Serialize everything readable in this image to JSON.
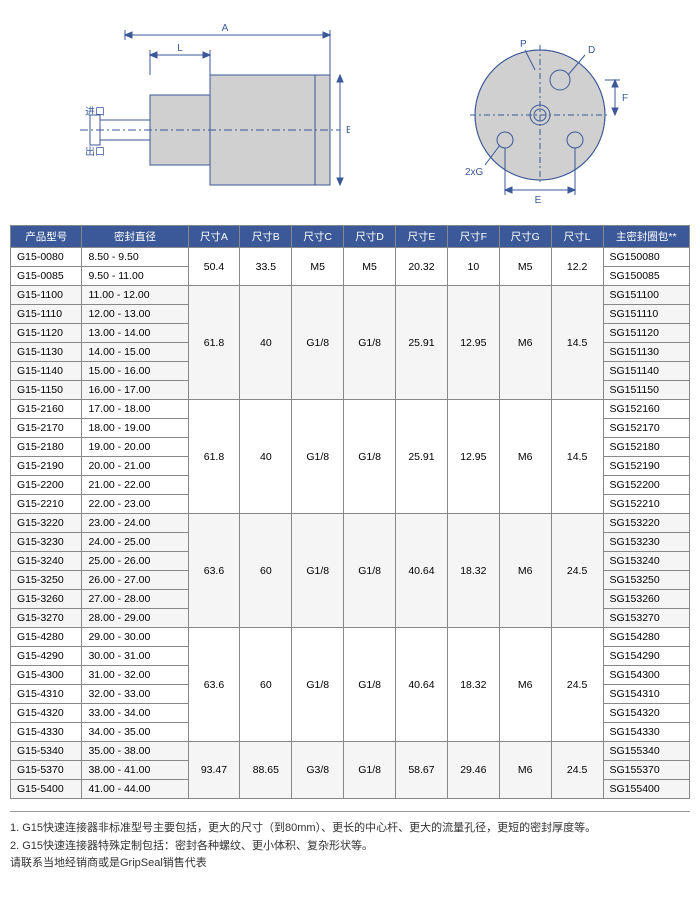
{
  "diagram": {
    "labels": {
      "A": "A",
      "L": "L",
      "B": "B",
      "P": "P",
      "D": "D",
      "F": "F",
      "E": "E",
      "twoG": "2xG",
      "inlet": "进口",
      "outlet": "出口"
    }
  },
  "table": {
    "headers": [
      "产品型号",
      "密封直径",
      "尺寸A",
      "尺寸B",
      "尺寸C",
      "尺寸D",
      "尺寸E",
      "尺寸F",
      "尺寸G",
      "尺寸L",
      "主密封圈包**"
    ],
    "groups": [
      {
        "dims": [
          "50.4",
          "33.5",
          "M5",
          "M5",
          "20.32",
          "10",
          "M5",
          "12.2"
        ],
        "rows": [
          {
            "model": "G15-0080",
            "seal": "8.50   -  9.50",
            "kit": "SG150080"
          },
          {
            "model": "G15-0085",
            "seal": "9.50   -  11.00",
            "kit": "SG150085"
          }
        ]
      },
      {
        "dims": [
          "61.8",
          "40",
          "G1/8",
          "G1/8",
          "25.91",
          "12.95",
          "M6",
          "14.5"
        ],
        "rows": [
          {
            "model": "G15-1100",
            "seal": "11.00  -  12.00",
            "kit": "SG151100"
          },
          {
            "model": "G15-1110",
            "seal": "12.00  -  13.00",
            "kit": "SG151110"
          },
          {
            "model": "G15-1120",
            "seal": "13.00  -  14.00",
            "kit": "SG151120"
          },
          {
            "model": "G15-1130",
            "seal": "14.00  -  15.00",
            "kit": "SG151130"
          },
          {
            "model": "G15-1140",
            "seal": "15.00  -  16.00",
            "kit": "SG151140"
          },
          {
            "model": "G15-1150",
            "seal": "16.00  -  17.00",
            "kit": "SG151150"
          }
        ]
      },
      {
        "dims": [
          "61.8",
          "40",
          "G1/8",
          "G1/8",
          "25.91",
          "12.95",
          "M6",
          "14.5"
        ],
        "rows": [
          {
            "model": "G15-2160",
            "seal": "17.00  -  18.00",
            "kit": "SG152160"
          },
          {
            "model": "G15-2170",
            "seal": "18.00  -  19.00",
            "kit": "SG152170"
          },
          {
            "model": "G15-2180",
            "seal": "19.00  -  20.00",
            "kit": "SG152180"
          },
          {
            "model": "G15-2190",
            "seal": "20.00  -  21.00",
            "kit": "SG152190"
          },
          {
            "model": "G15-2200",
            "seal": "21.00  -  22.00",
            "kit": "SG152200"
          },
          {
            "model": "G15-2210",
            "seal": "22.00  -  23.00",
            "kit": "SG152210"
          }
        ]
      },
      {
        "dims": [
          "63.6",
          "60",
          "G1/8",
          "G1/8",
          "40.64",
          "18.32",
          "M6",
          "24.5"
        ],
        "rows": [
          {
            "model": "G15-3220",
            "seal": "23.00  -  24.00",
            "kit": "SG153220"
          },
          {
            "model": "G15-3230",
            "seal": "24.00  -  25.00",
            "kit": "SG153230"
          },
          {
            "model": "G15-3240",
            "seal": "25.00  -  26.00",
            "kit": "SG153240"
          },
          {
            "model": "G15-3250",
            "seal": "26.00  -  27.00",
            "kit": "SG153250"
          },
          {
            "model": "G15-3260",
            "seal": "27.00  -  28.00",
            "kit": "SG153260"
          },
          {
            "model": "G15-3270",
            "seal": "28.00  -  29.00",
            "kit": "SG153270"
          }
        ]
      },
      {
        "dims": [
          "63.6",
          "60",
          "G1/8",
          "G1/8",
          "40.64",
          "18.32",
          "M6",
          "24.5"
        ],
        "rows": [
          {
            "model": "G15-4280",
            "seal": "29.00  -  30.00",
            "kit": "SG154280"
          },
          {
            "model": "G15-4290",
            "seal": "30.00  -  31.00",
            "kit": "SG154290"
          },
          {
            "model": "G15-4300",
            "seal": "31.00  -  32.00",
            "kit": "SG154300"
          },
          {
            "model": "G15-4310",
            "seal": "32.00  -  33.00",
            "kit": "SG154310"
          },
          {
            "model": "G15-4320",
            "seal": "33.00  -  34.00",
            "kit": "SG154320"
          },
          {
            "model": "G15-4330",
            "seal": "34.00  -  35.00",
            "kit": "SG154330"
          }
        ]
      },
      {
        "dims": [
          "93.47",
          "88.65",
          "G3/8",
          "G1/8",
          "58.67",
          "29.46",
          "M6",
          "24.5"
        ],
        "rows": [
          {
            "model": "G15-5340",
            "seal": "35.00  -  38.00",
            "kit": "SG155340"
          },
          {
            "model": "G15-5370",
            "seal": "38.00  -  41.00",
            "kit": "SG155370"
          },
          {
            "model": "G15-5400",
            "seal": "41.00  -  44.00",
            "kit": "SG155400"
          }
        ]
      }
    ]
  },
  "notes": [
    "1. G15快速连接器非标准型号主要包括，更大的尺寸（到80mm）、更长的中心杆、更大的流量孔径，更短的密封厚度等。",
    "2. G15快速连接器特殊定制包括：密封各种螺纹、更小体积、复杂形状等。",
    "请联系当地经销商或是GripSeal销售代表"
  ]
}
